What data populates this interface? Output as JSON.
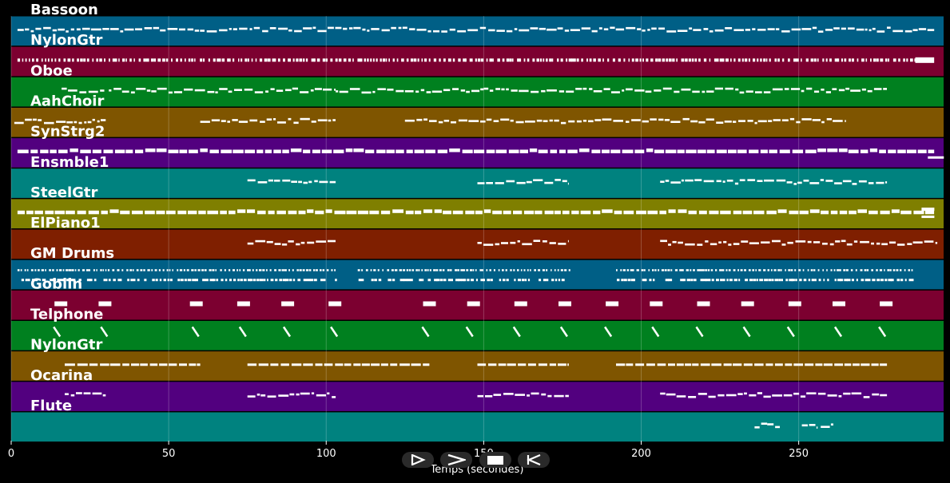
{
  "chart_data": {
    "type": "piano-roll",
    "xlabel": "Temps (secondes)",
    "xlim": [
      0,
      296
    ],
    "xticks": [
      0,
      50,
      100,
      150,
      200,
      250
    ],
    "grid": true,
    "tracks": [
      {
        "name": "Bassoon",
        "color": "#005f86",
        "style": "dense-line",
        "segments": [
          [
            2,
            293
          ]
        ]
      },
      {
        "name": "NylonGtr",
        "color": "#7c0030",
        "style": "ticks",
        "segments": [
          [
            2,
            288
          ]
        ],
        "final_block": [
          287,
          293
        ]
      },
      {
        "name": "Oboe",
        "color": "#00801f",
        "style": "dense-line",
        "segments": [
          [
            16,
            30
          ],
          [
            31,
            103
          ],
          [
            103,
            150
          ],
          [
            150,
            278
          ]
        ]
      },
      {
        "name": "AahChoir",
        "color": "#7f5500",
        "style": "dense-line",
        "segments": [
          [
            1,
            30
          ],
          [
            60,
            103
          ],
          [
            125,
            265
          ]
        ]
      },
      {
        "name": "SynStrg2",
        "color": "#52007f",
        "style": "blocks",
        "segments": [
          [
            2,
            293
          ]
        ]
      },
      {
        "name": "Ensmble1",
        "color": "#00827f",
        "style": "dense-line",
        "segments": [
          [
            75,
            103
          ],
          [
            148,
            177
          ],
          [
            206,
            278
          ]
        ]
      },
      {
        "name": "SteelGtr",
        "color": "#7f7f00",
        "style": "blocks",
        "segments": [
          [
            2,
            293
          ]
        ]
      },
      {
        "name": "ElPiano1",
        "color": "#7f1f00",
        "style": "dense-line",
        "segments": [
          [
            75,
            103
          ],
          [
            148,
            177
          ],
          [
            206,
            294
          ]
        ]
      },
      {
        "name": "GM Drums",
        "color": "#005f86",
        "style": "drums",
        "segments": [
          [
            2,
            103
          ],
          [
            110,
            178
          ],
          [
            192,
            287
          ]
        ]
      },
      {
        "name": "Goblin",
        "color": "#7c0030",
        "style": "notes",
        "notes": [
          14,
          28,
          57,
          72,
          86,
          101,
          131,
          145,
          160,
          174,
          189,
          203,
          218,
          232,
          247,
          261,
          276
        ]
      },
      {
        "name": "Telphone",
        "color": "#00801f",
        "style": "slashes",
        "notes": [
          14,
          29,
          58,
          73,
          87,
          102,
          131,
          145,
          160,
          175,
          189,
          204,
          218,
          233,
          247,
          262,
          276
        ]
      },
      {
        "name": "NylonGtr",
        "color": "#7f5500",
        "style": "dashes",
        "segments": [
          [
            17,
            60
          ],
          [
            75,
            133
          ],
          [
            148,
            177
          ],
          [
            192,
            278
          ]
        ]
      },
      {
        "name": "Ocarina",
        "color": "#52007f",
        "style": "dense-line",
        "segments": [
          [
            17,
            30
          ],
          [
            75,
            103
          ],
          [
            148,
            177
          ],
          [
            206,
            278
          ]
        ]
      },
      {
        "name": "Flute",
        "color": "#00827f",
        "style": "dense-line",
        "segments": [
          [
            236,
            240
          ],
          [
            240,
            244
          ],
          [
            251,
            256
          ],
          [
            257,
            261
          ]
        ]
      }
    ]
  },
  "controls": [
    {
      "name": "play-button",
      "icon": "play-icon"
    },
    {
      "name": "forward-button",
      "icon": "chevron-right-icon"
    },
    {
      "name": "stop-button",
      "icon": "stop-icon"
    },
    {
      "name": "rewind-button",
      "icon": "rewind-icon"
    }
  ]
}
